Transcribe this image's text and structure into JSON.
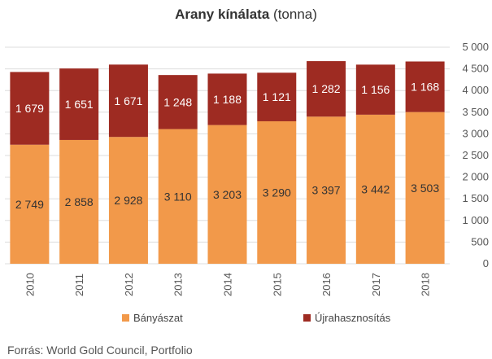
{
  "title_bold": "Arany kínálata",
  "title_rest": "(tonna)",
  "source": "Forrás: World Gold Council, Portfolio",
  "colors": {
    "mining": "#f2994a",
    "recycling": "#9e2b22",
    "grid": "#dddddd",
    "axis_text": "#555555"
  },
  "chart_data": {
    "type": "bar",
    "stacked": true,
    "title": "Arany kínálata (tonna)",
    "categories": [
      "2010",
      "2011",
      "2012",
      "2013",
      "2014",
      "2015",
      "2016",
      "2017",
      "2018"
    ],
    "series": [
      {
        "name": "Bányászat",
        "values": [
          2749,
          2858,
          2928,
          3110,
          3203,
          3290,
          3397,
          3442,
          3503
        ],
        "labels": [
          "2 749",
          "2 858",
          "2 928",
          "3 110",
          "3 203",
          "3 290",
          "3 397",
          "3 442",
          "3 503"
        ]
      },
      {
        "name": "Újrahasznosítás",
        "values": [
          1679,
          1651,
          1671,
          1248,
          1188,
          1121,
          1282,
          1156,
          1168
        ],
        "labels": [
          "1 679",
          "1 651",
          "1 671",
          "1 248",
          "1 188",
          "1 121",
          "1 282",
          "1 156",
          "1 168"
        ]
      }
    ],
    "y_ticks": [
      0,
      500,
      1000,
      1500,
      2000,
      2500,
      3000,
      3500,
      4000,
      4500,
      5000
    ],
    "y_tick_labels": [
      "0",
      "500",
      "1 000",
      "1 500",
      "2 000",
      "2 500",
      "3 000",
      "3 500",
      "4 000",
      "4 500",
      "5 000"
    ],
    "ylim": [
      0,
      5000
    ],
    "y_axis_side": "right",
    "grid": true,
    "legend_position": "bottom"
  }
}
